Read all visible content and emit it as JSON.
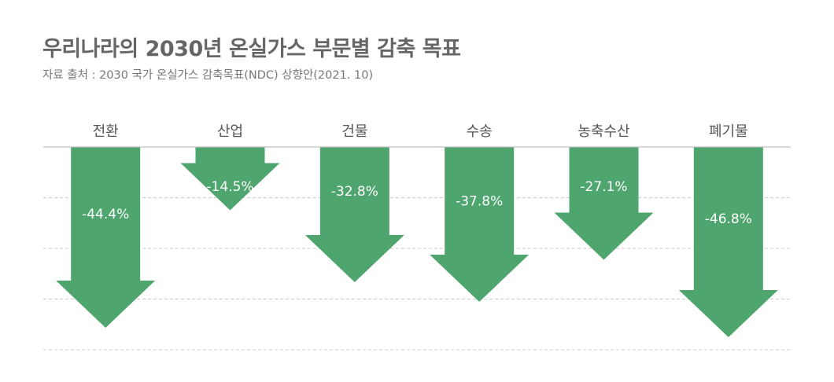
{
  "title": "우리나라의 2030년 온실가스 부문별 감축 목표",
  "subtitle": "자료 출처 : 2030 국가 온실가스 감축목표(NDC) 상향안(2021. 10)",
  "colors": {
    "arrow": "#4ea56d",
    "baseline": "#bfbfbf",
    "grid": "#cccccc",
    "text": "#555555"
  },
  "chart_data": {
    "type": "bar",
    "orientation": "downward-arrows",
    "categories": [
      "전환",
      "산업",
      "건물",
      "수송",
      "농축수산",
      "폐기물"
    ],
    "values": [
      -44.4,
      -14.5,
      -32.8,
      -37.8,
      -27.1,
      -46.8
    ],
    "data_labels": [
      "-44.4%",
      "-14.5%",
      "-32.8%",
      "-37.8%",
      "-27.1%",
      "-46.8%"
    ],
    "ylim": [
      -50,
      0
    ],
    "grid": true
  }
}
